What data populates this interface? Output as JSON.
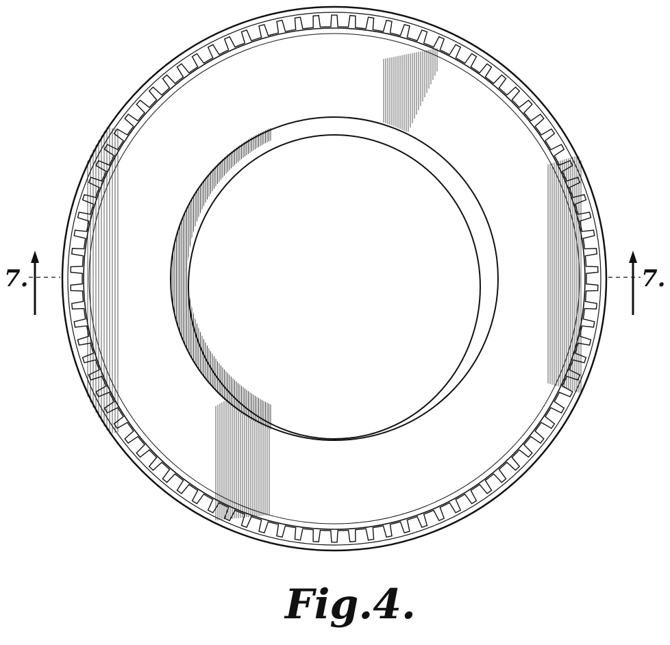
{
  "figure": {
    "caption": "Fig.4.",
    "subject": "tire-side-view",
    "tread_notch_count": 90
  },
  "section_markers": {
    "left_label": "7.",
    "right_label": "7."
  },
  "colors": {
    "line": "#111111",
    "background": "#ffffff"
  }
}
